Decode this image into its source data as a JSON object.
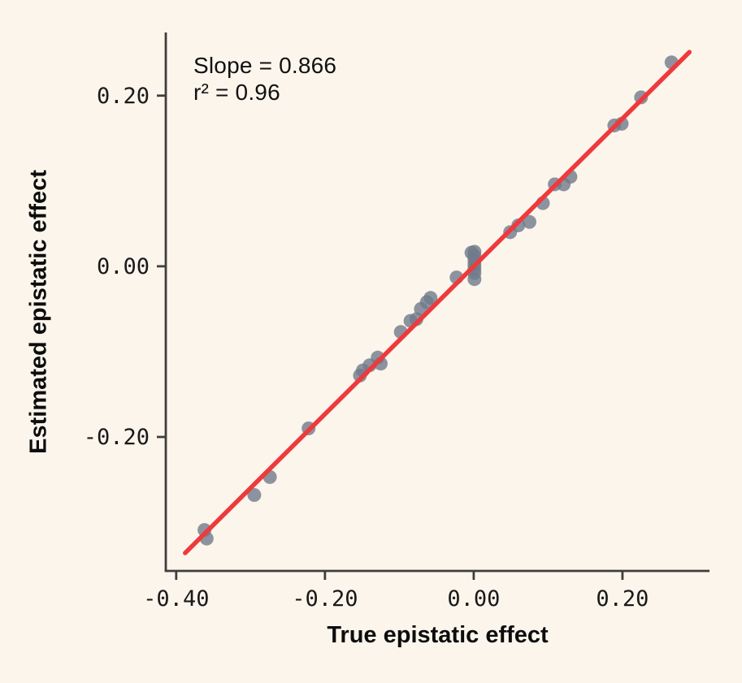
{
  "chart_data": {
    "type": "scatter",
    "annotation": {
      "line1": "Slope = 0.866",
      "line2": "r² = 0.96"
    },
    "xlabel": "True epistatic effect",
    "ylabel": "Estimated epistatic effect",
    "xlim": [
      -0.414,
      0.317
    ],
    "ylim": [
      -0.357,
      0.274
    ],
    "grid": false,
    "legend": false,
    "x_ticks": [
      {
        "value": -0.4,
        "label": "-0.40"
      },
      {
        "value": -0.2,
        "label": "-0.20"
      },
      {
        "value": 0.0,
        "label": "0.00"
      },
      {
        "value": 0.2,
        "label": "0.20"
      }
    ],
    "y_ticks": [
      {
        "value": 0.2,
        "label": "0.20"
      },
      {
        "value": 0.0,
        "label": "0.00"
      },
      {
        "value": -0.2,
        "label": "-0.20"
      }
    ],
    "fit_line": {
      "slope": 0.866,
      "r_squared": 0.96,
      "x1": -0.388,
      "y1": -0.336,
      "x2": 0.29,
      "y2": 0.251
    },
    "points": [
      [
        -0.362,
        -0.309
      ],
      [
        -0.359,
        -0.319
      ],
      [
        -0.295,
        -0.268
      ],
      [
        -0.274,
        -0.247
      ],
      [
        -0.222,
        -0.19
      ],
      [
        -0.153,
        -0.128
      ],
      [
        -0.149,
        -0.122
      ],
      [
        -0.14,
        -0.116
      ],
      [
        -0.129,
        -0.107
      ],
      [
        -0.125,
        -0.114
      ],
      [
        -0.098,
        -0.077
      ],
      [
        -0.085,
        -0.064
      ],
      [
        -0.077,
        -0.062
      ],
      [
        -0.071,
        -0.05
      ],
      [
        -0.063,
        -0.042
      ],
      [
        -0.058,
        -0.037
      ],
      [
        -0.023,
        -0.013
      ],
      [
        -0.003,
        0.016
      ],
      [
        0.001,
        0.017
      ],
      [
        0.001,
        0.012
      ],
      [
        0.001,
        0.007
      ],
      [
        0.001,
        0.002
      ],
      [
        0.001,
        -0.003
      ],
      [
        0.001,
        -0.008
      ],
      [
        0.001,
        -0.015
      ],
      [
        0.049,
        0.04
      ],
      [
        0.06,
        0.048
      ],
      [
        0.075,
        0.052
      ],
      [
        0.093,
        0.074
      ],
      [
        0.109,
        0.096
      ],
      [
        0.121,
        0.096
      ],
      [
        0.13,
        0.105
      ],
      [
        0.189,
        0.165
      ],
      [
        0.199,
        0.167
      ],
      [
        0.225,
        0.198
      ],
      [
        0.266,
        0.239
      ]
    ],
    "colors": {
      "background": "#fcf5ec",
      "axis": "#3e3e3e",
      "tick_text": "#1a1a1a",
      "point": "#6f7b8b",
      "fit_line": "#ee3a3c",
      "text": "#111111"
    }
  }
}
